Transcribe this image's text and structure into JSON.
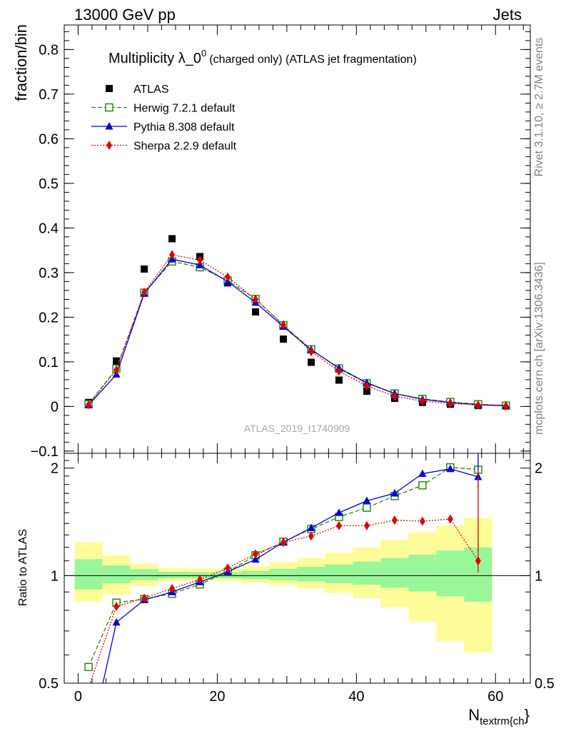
{
  "header": {
    "left": "13000 GeV pp",
    "right": "Jets",
    "side_top": "Rivet 3.1.10, ≥ 2.7M events",
    "side_bottom": "mcplots.cern.ch [arXiv:1306.3436]",
    "watermark": "ATLAS_2019_I1740909"
  },
  "chart_data": [
    {
      "type": "scatter",
      "title": "Multiplicity λ_0",
      "title_superscript": "0",
      "subtitle": "(charged only) (ATLAS jet fragmentation)",
      "ylabel": "fraction/bin",
      "xlabel": "N",
      "xlabel_sub": "textrm{ch",
      "xlabel_close": "}",
      "xlim": [
        -2,
        65
      ],
      "ylim": [
        -0.105,
        0.855
      ],
      "yticks": [
        -0.1,
        0,
        0.1,
        0.2,
        0.3,
        0.4,
        0.5,
        0.6,
        0.7,
        0.8
      ],
      "ytick_labels": [
        "−0.1",
        "0",
        "0.1",
        "0.2",
        "0.3",
        "0.4",
        "0.5",
        "0.6",
        "0.7",
        "0.8"
      ],
      "legend_placement": "top-left",
      "x": [
        1.5,
        5.5,
        9.5,
        13.5,
        17.5,
        21.5,
        25.5,
        29.5,
        33.5,
        37.5,
        41.5,
        45.5,
        49.5,
        53.5,
        57.5,
        61.5
      ],
      "series": [
        {
          "name": "ATLAS",
          "color": "#000000",
          "marker": "square",
          "values": [
            0.009,
            0.102,
            0.308,
            0.376,
            0.336,
            0.277,
            0.212,
            0.151,
            0.099,
            0.059,
            0.034,
            0.018,
            0.009,
            0.005,
            0.002,
            0.001
          ]
        },
        {
          "name": "Herwig 7.2.1 default",
          "color": "#2b8a0a",
          "marker": "open-square",
          "line": "dashed",
          "values": [
            0.005,
            0.085,
            0.255,
            0.325,
            0.312,
            0.282,
            0.241,
            0.182,
            0.128,
            0.085,
            0.052,
            0.029,
            0.017,
            0.01,
            0.005,
            0.002
          ]
        },
        {
          "name": "Pythia 8.308 default",
          "color": "#0000dd",
          "marker": "triangle",
          "line": "solid",
          "values": [
            0.003,
            0.072,
            0.253,
            0.33,
            0.317,
            0.28,
            0.233,
            0.179,
            0.127,
            0.086,
            0.053,
            0.029,
            0.016,
            0.009,
            0.004,
            0.002
          ]
        },
        {
          "name": "Sherpa 2.2.9 default",
          "color": "#e00000",
          "marker": "diamond",
          "line": "dotted",
          "values": [
            0.004,
            0.082,
            0.256,
            0.34,
            0.328,
            0.29,
            0.24,
            0.183,
            0.123,
            0.079,
            0.046,
            0.023,
            0.012,
            0.007,
            0.003,
            0.001
          ]
        }
      ]
    },
    {
      "type": "line",
      "ylabel": "Ratio to ATLAS",
      "xlim": [
        -2,
        65
      ],
      "ylim": [
        0.5,
        2.2
      ],
      "yticks": [
        0.5,
        1,
        2
      ],
      "ytick_labels": [
        "0.5",
        "1",
        "2"
      ],
      "xticks": [
        0,
        20,
        40,
        60
      ],
      "xtick_labels": [
        "0",
        "20",
        "40",
        "60"
      ],
      "bin_edges": [
        -0.5,
        3.5,
        7.5,
        11.5,
        15.5,
        19.5,
        23.5,
        27.5,
        31.5,
        35.5,
        39.5,
        43.5,
        47.5,
        51.5,
        55.5,
        59.5
      ],
      "band_colors": {
        "inner": "#99f799",
        "outer": "#fdfc99"
      },
      "band_inner": [
        [
          0.915,
          1.112
        ],
        [
          0.952,
          1.068
        ],
        [
          0.972,
          1.043
        ],
        [
          0.984,
          1.025
        ],
        [
          0.985,
          1.022
        ],
        [
          0.983,
          1.022
        ],
        [
          0.978,
          1.032
        ],
        [
          0.971,
          1.045
        ],
        [
          0.963,
          1.058
        ],
        [
          0.953,
          1.075
        ],
        [
          0.943,
          1.095
        ],
        [
          0.925,
          1.12
        ],
        [
          0.903,
          1.145
        ],
        [
          0.875,
          1.175
        ],
        [
          0.845,
          1.2
        ]
      ],
      "band_outer": [
        [
          0.845,
          1.24
        ],
        [
          0.885,
          1.14
        ],
        [
          0.935,
          1.08
        ],
        [
          0.965,
          1.05
        ],
        [
          0.97,
          1.045
        ],
        [
          0.965,
          1.045
        ],
        [
          0.955,
          1.065
        ],
        [
          0.94,
          1.09
        ],
        [
          0.92,
          1.12
        ],
        [
          0.895,
          1.16
        ],
        [
          0.865,
          1.2
        ],
        [
          0.815,
          1.26
        ],
        [
          0.745,
          1.32
        ],
        [
          0.655,
          1.38
        ],
        [
          0.61,
          1.45
        ]
      ],
      "x": [
        1.5,
        5.5,
        9.5,
        13.5,
        17.5,
        21.5,
        25.5,
        29.5,
        33.5,
        37.5,
        41.5,
        45.5,
        49.5,
        53.5,
        57.5
      ],
      "series": [
        {
          "name": "Herwig 7.2.1 default",
          "color": "#2b8a0a",
          "values": [
            0.555,
            0.84,
            0.86,
            0.89,
            0.945,
            1.025,
            1.14,
            1.245,
            1.35,
            1.46,
            1.55,
            1.67,
            1.79,
            2.01,
            1.98
          ]
        },
        {
          "name": "Pythia 8.308 default",
          "color": "#0000dd",
          "values": [
            0.33,
            0.74,
            0.855,
            0.9,
            0.96,
            1.025,
            1.11,
            1.24,
            1.36,
            1.5,
            1.62,
            1.7,
            1.93,
            1.99,
            1.89
          ]
        },
        {
          "name": "Sherpa 2.2.9 default",
          "color": "#e00000",
          "values": [
            0.485,
            0.82,
            0.865,
            0.92,
            0.975,
            1.05,
            1.15,
            1.24,
            1.29,
            1.38,
            1.38,
            1.43,
            1.42,
            1.44,
            1.1
          ]
        }
      ]
    }
  ]
}
